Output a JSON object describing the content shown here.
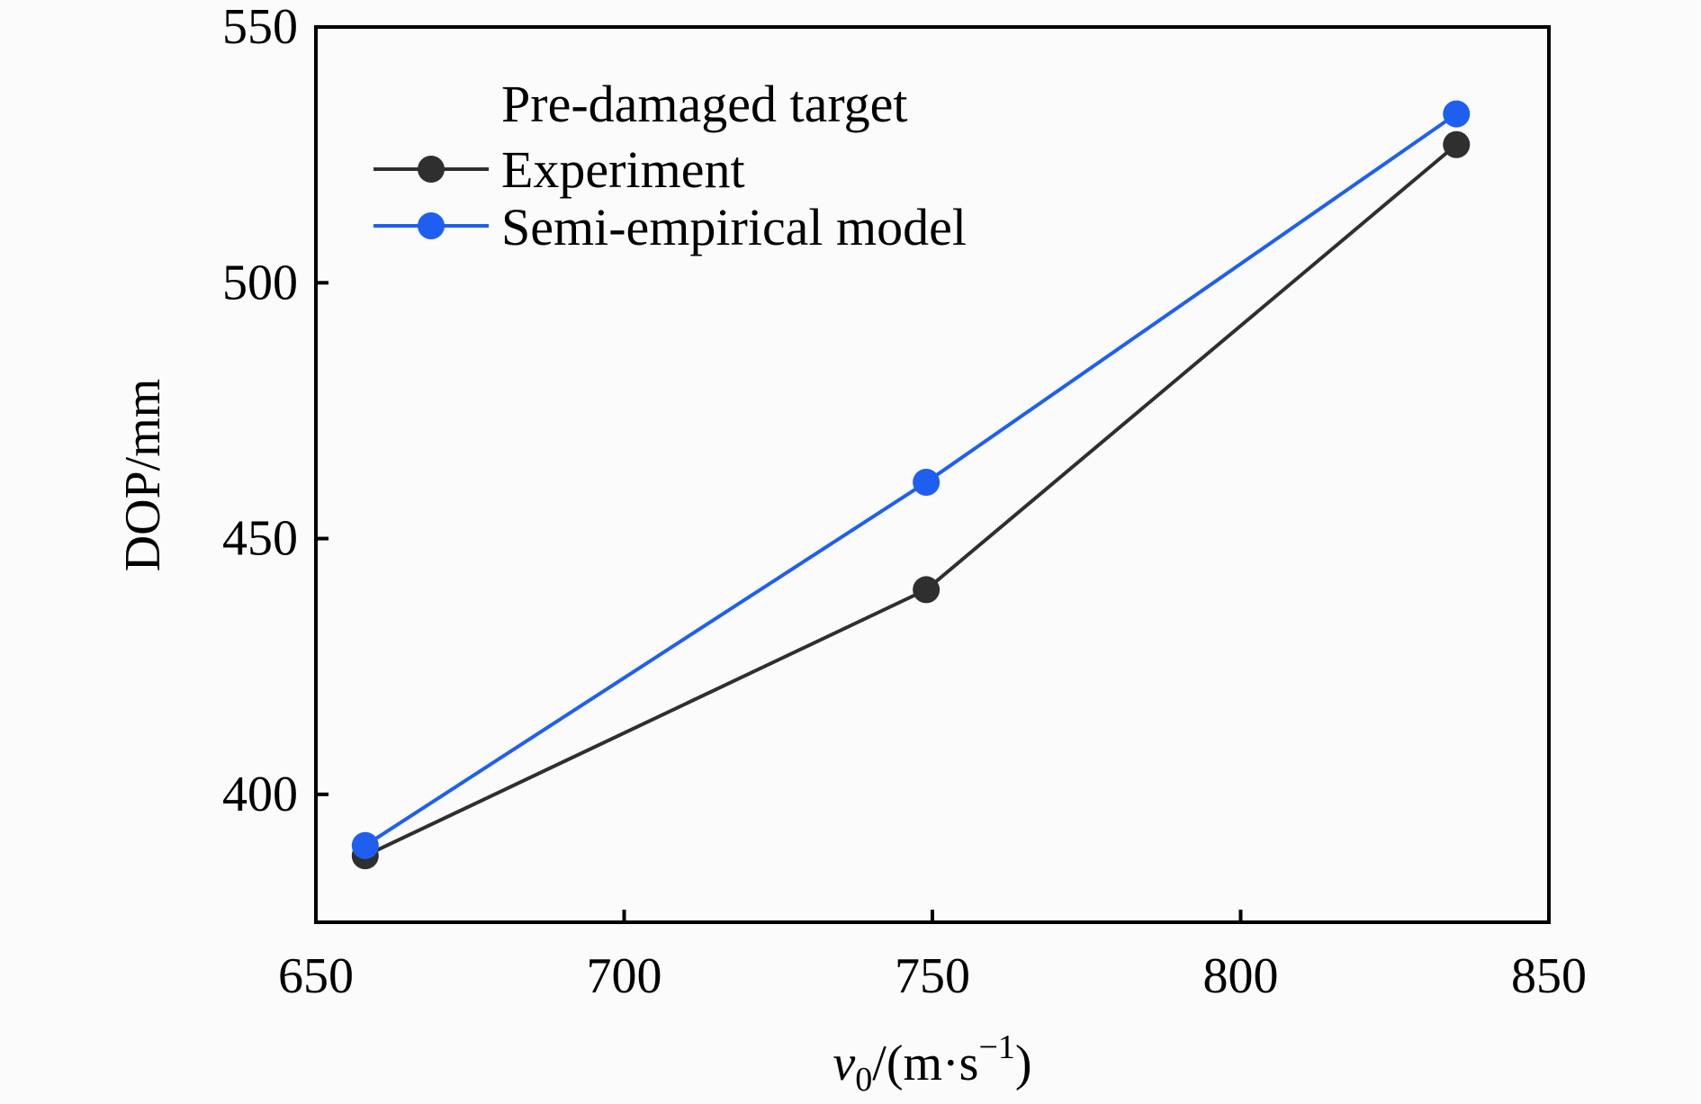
{
  "chart_data": {
    "type": "line",
    "xlabel_parts": {
      "v": "v",
      "sub": "0",
      "unit": "/(m·s",
      "sup": "−1",
      "close": ")"
    },
    "ylabel": "DOP/mm",
    "xlim": [
      650,
      850
    ],
    "ylim": [
      375,
      550
    ],
    "xticks": [
      650,
      700,
      750,
      800,
      850
    ],
    "yticks": [
      400,
      450,
      500,
      550
    ],
    "legend": {
      "title": "Pre-damaged target",
      "position": "top-left"
    },
    "series": [
      {
        "name": "Experiment",
        "color": "#2f2f2f",
        "x": [
          658,
          749,
          835
        ],
        "y": [
          388,
          440,
          527
        ]
      },
      {
        "name": "Semi-empirical model",
        "color": "#1f5ff0",
        "x": [
          658,
          749,
          835
        ],
        "y": [
          390,
          461,
          533
        ]
      }
    ],
    "grid": false
  }
}
